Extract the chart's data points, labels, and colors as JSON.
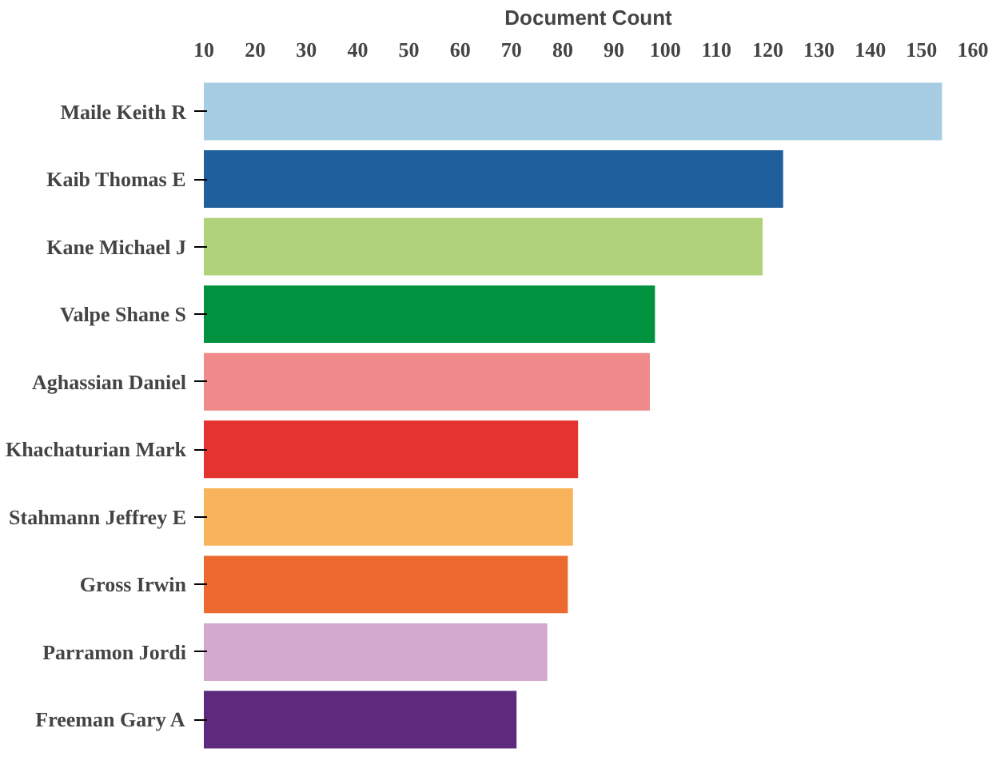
{
  "chart_data": {
    "type": "bar",
    "orientation": "horizontal",
    "xlabel": "Document Count",
    "categories": [
      "Maile Keith R",
      "Kaib Thomas E",
      "Kane Michael J",
      "Valpe Shane S",
      "Aghassian Daniel",
      "Khachaturian Mark",
      "Stahmann Jeffrey E",
      "Gross Irwin",
      "Parramon Jordi",
      "Freeman Gary A"
    ],
    "values": [
      154,
      123,
      119,
      98,
      97,
      83,
      82,
      81,
      77,
      71
    ],
    "colors": [
      "#a6cde3",
      "#1f5f9e",
      "#b0d27a",
      "#00923f",
      "#f08a8a",
      "#e3342f",
      "#f9b35a",
      "#ec6a30",
      "#d4a9cf",
      "#5e2a7e"
    ],
    "xlim": [
      10,
      160
    ],
    "xticks": [
      10,
      20,
      30,
      40,
      50,
      60,
      70,
      80,
      90,
      100,
      110,
      120,
      130,
      140,
      150,
      160
    ],
    "grid": false
  }
}
